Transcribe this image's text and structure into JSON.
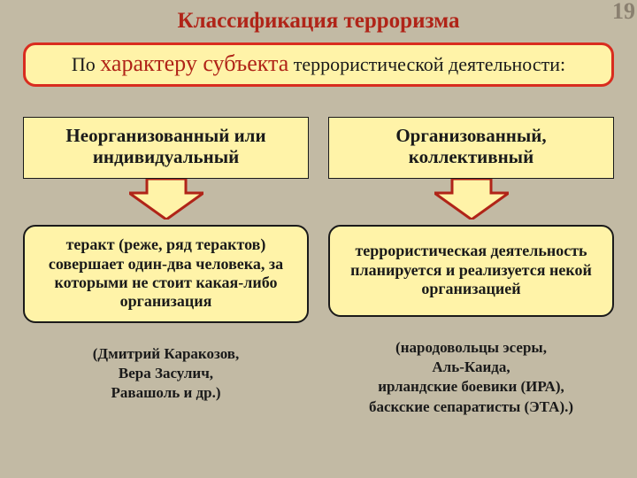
{
  "colors": {
    "background": "#c2baa4",
    "title": "#b02418",
    "subtitle_border": "#d92c1f",
    "subtitle_bg": "#fff3a8",
    "subtitle_text": "#1a1a1a",
    "subtitle_emph": "#b02418",
    "header_bg": "#fff3a8",
    "header_border": "#1a1a1a",
    "header_text": "#1a1a1a",
    "arrow_fill": "#fff3a8",
    "arrow_stroke": "#b02418",
    "desc_bg": "#fff3a8",
    "desc_border": "#1a1a1a",
    "desc_text": "#1a1a1a",
    "examples_text": "#1a1a1a",
    "page_number": "#8a8070"
  },
  "page_number": "19",
  "title": "Классификация терроризма",
  "subtitle": {
    "pre": "По ",
    "emph": "характеру субъекта",
    "post": " террористической деятельности:"
  },
  "columns": [
    {
      "header": "Неорганизованный или индивидуальный",
      "description": "теракт (реже, ряд терактов) совершает один-два человека, за которыми не стоит какая-либо организация",
      "examples": "(Дмитрий Каракозов,\nВера Засулич,\nРавашоль и др.)"
    },
    {
      "header": "Организованный, коллективный",
      "description": "террористическая деятельность планируется и реализуется некой организацией",
      "examples": "(народовольцы эсеры,\nАль-Каида,\nирландские боевики (ИРА),\nбаскские сепаратисты (ЭТА).)"
    }
  ],
  "layout": {
    "arrow": {
      "width": 84,
      "height": 46,
      "stroke_width": 3
    },
    "fontsize": {
      "title": 25,
      "subtitle": 22,
      "subtitle_emph": 26,
      "header": 21,
      "desc": 18,
      "examples": 17,
      "page_number": 26
    }
  }
}
